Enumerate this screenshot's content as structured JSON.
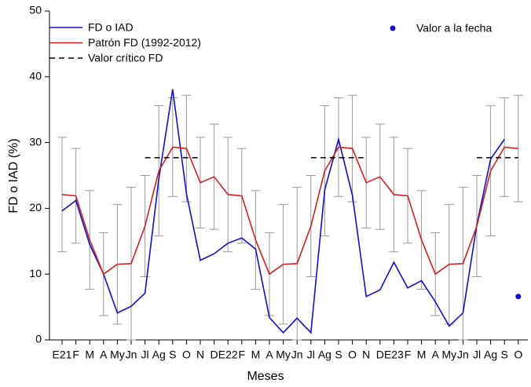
{
  "chart_data": {
    "type": "line",
    "xlabel": "Meses",
    "ylabel": "FD o IAD (%)",
    "categories": [
      "E21",
      "F",
      "M",
      "A",
      "My",
      "Jn",
      "Jl",
      "Ag",
      "S",
      "O",
      "N",
      "D",
      "E22",
      "F",
      "M",
      "A",
      "My",
      "Jn",
      "Jl",
      "Ag",
      "S",
      "O",
      "N",
      "D",
      "E23",
      "F",
      "M",
      "A",
      "My",
      "Jn",
      "Jl",
      "Ag",
      "S",
      "O"
    ],
    "ylim": [
      0,
      50
    ],
    "yticks": [
      0,
      10,
      20,
      30,
      40,
      50
    ],
    "series": [
      {
        "name": "FD o IAD",
        "color": "#1010c8",
        "style": "solid",
        "values": [
          19.6,
          21.2,
          14.5,
          10.0,
          4.1,
          5.1,
          7.1,
          24.5,
          38.1,
          22.2,
          12.1,
          13.1,
          14.7,
          15.5,
          13.8,
          3.4,
          1.1,
          3.3,
          1.1,
          22.8,
          30.5,
          22.0,
          6.6,
          7.6,
          11.8,
          7.9,
          9.0,
          5.8,
          2.1,
          4.1,
          17.5,
          27.5,
          30.5,
          null
        ]
      },
      {
        "name": "Patrón FD (1992-2012)",
        "color": "#d42020",
        "style": "solid",
        "values": [
          22.1,
          21.9,
          15.2,
          10.0,
          11.5,
          11.6,
          17.3,
          25.7,
          29.3,
          29.1,
          23.9,
          24.8,
          22.1,
          21.9,
          15.2,
          10.0,
          11.5,
          11.6,
          17.3,
          25.7,
          29.3,
          29.1,
          23.9,
          24.8,
          22.1,
          21.9,
          15.2,
          10.0,
          11.5,
          11.6,
          17.3,
          25.7,
          29.3,
          29.1
        ],
        "low": [
          13.4,
          14.7,
          7.7,
          3.7,
          2.4,
          0,
          9.6,
          15.8,
          21.8,
          21.0,
          17.0,
          16.8,
          13.4,
          14.7,
          7.7,
          3.7,
          2.4,
          0,
          9.6,
          15.8,
          21.8,
          21.0,
          17.0,
          16.8,
          13.4,
          14.7,
          7.7,
          3.7,
          2.4,
          0,
          9.6,
          15.8,
          21.8,
          21.0
        ],
        "high": [
          30.8,
          29.1,
          22.7,
          16.3,
          20.6,
          23.2,
          25.0,
          35.6,
          36.8,
          37.2,
          30.8,
          32.8,
          30.8,
          29.1,
          22.7,
          16.3,
          20.6,
          23.2,
          25.0,
          35.6,
          36.8,
          37.2,
          30.8,
          32.8,
          30.8,
          29.1,
          22.7,
          16.3,
          20.6,
          23.2,
          25.0,
          35.6,
          36.8,
          37.2
        ],
        "error_color": "#999999"
      },
      {
        "name": "Valor crítico FD",
        "color": "#000000",
        "style": "dashed",
        "values": [
          null,
          null,
          null,
          null,
          null,
          null,
          27.7,
          27.7,
          27.7,
          27.7,
          27.7,
          null,
          null,
          null,
          null,
          null,
          null,
          null,
          27.7,
          27.7,
          27.7,
          27.7,
          27.7,
          null,
          null,
          null,
          null,
          null,
          null,
          null,
          27.7,
          27.7,
          27.7,
          27.7
        ]
      },
      {
        "name": "Valor a la fecha",
        "color": "#1010c8",
        "style": "dot",
        "values": [
          null,
          null,
          null,
          null,
          null,
          null,
          null,
          null,
          null,
          null,
          null,
          null,
          null,
          null,
          null,
          null,
          null,
          null,
          null,
          null,
          null,
          null,
          null,
          null,
          null,
          null,
          null,
          null,
          null,
          null,
          null,
          null,
          null,
          6.6
        ]
      }
    ]
  }
}
